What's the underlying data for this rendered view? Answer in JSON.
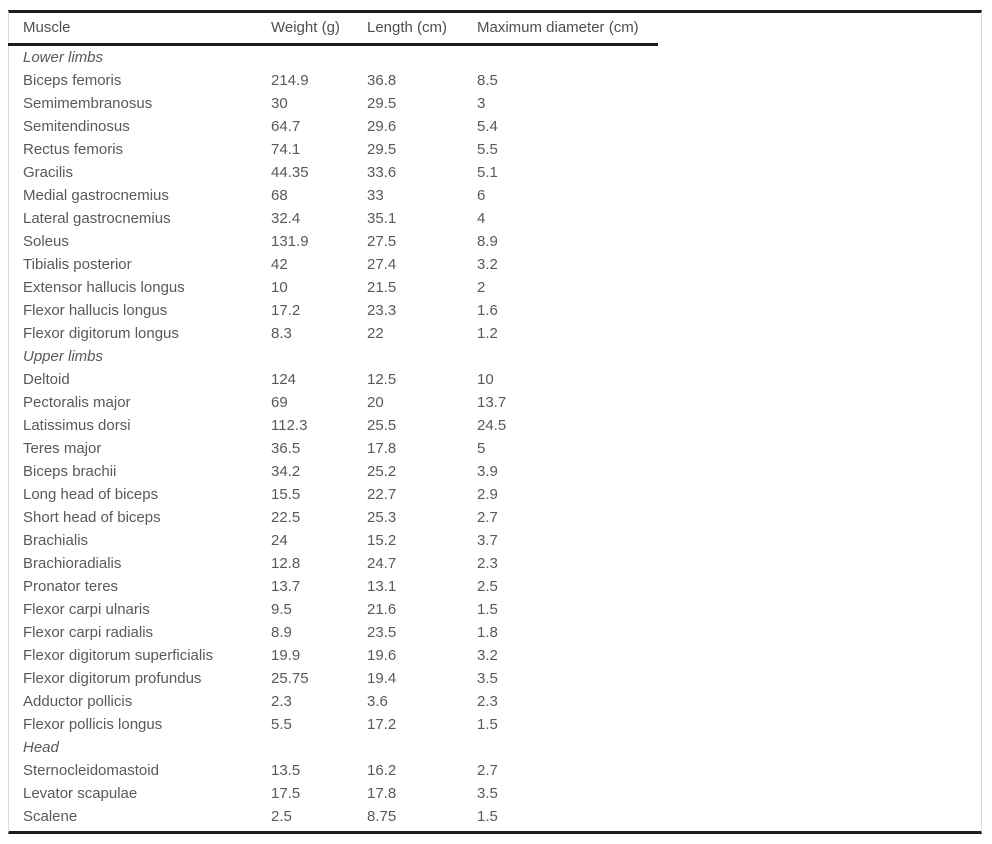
{
  "colors": {
    "background": "#ffffff",
    "text": "#595959",
    "header_text": "#4f4f4f",
    "rule": "#1d1d1d",
    "frame_border": "#d9d9d9"
  },
  "table": {
    "columns": [
      "Muscle",
      "Weight (g)",
      "Length (cm)",
      "Maximum diameter (cm)"
    ],
    "sections": [
      {
        "label": "Lower limbs",
        "rows": [
          [
            "Biceps femoris",
            "214.9",
            "36.8",
            "8.5"
          ],
          [
            "Semimembranosus",
            "30",
            "29.5",
            "3"
          ],
          [
            "Semitendinosus",
            "64.7",
            "29.6",
            "5.4"
          ],
          [
            "Rectus femoris",
            "74.1",
            "29.5",
            "5.5"
          ],
          [
            "Gracilis",
            "44.35",
            "33.6",
            "5.1"
          ],
          [
            "Medial gastrocnemius",
            "68",
            "33",
            "6"
          ],
          [
            "Lateral gastrocnemius",
            "32.4",
            "35.1",
            "4"
          ],
          [
            "Soleus",
            "131.9",
            "27.5",
            "8.9"
          ],
          [
            "Tibialis posterior",
            "42",
            "27.4",
            "3.2"
          ],
          [
            "Extensor hallucis longus",
            "10",
            "21.5",
            "2"
          ],
          [
            "Flexor hallucis longus",
            "17.2",
            "23.3",
            "1.6"
          ],
          [
            "Flexor digitorum longus",
            "8.3",
            "22",
            "1.2"
          ]
        ]
      },
      {
        "label": "Upper limbs",
        "rows": [
          [
            "Deltoid",
            "124",
            "12.5",
            "10"
          ],
          [
            "Pectoralis major",
            "69",
            "20",
            "13.7"
          ],
          [
            "Latissimus dorsi",
            "112.3",
            "25.5",
            "24.5"
          ],
          [
            "Teres major",
            "36.5",
            "17.8",
            "5"
          ],
          [
            "Biceps brachii",
            "34.2",
            "25.2",
            "3.9"
          ],
          [
            "Long head of biceps",
            "15.5",
            "22.7",
            "2.9"
          ],
          [
            "Short head of biceps",
            "22.5",
            "25.3",
            "2.7"
          ],
          [
            "Brachialis",
            "24",
            "15.2",
            "3.7"
          ],
          [
            "Brachioradialis",
            "12.8",
            "24.7",
            "2.3"
          ],
          [
            "Pronator teres",
            "13.7",
            "13.1",
            "2.5"
          ],
          [
            "Flexor carpi ulnaris",
            "9.5",
            "21.6",
            "1.5"
          ],
          [
            "Flexor carpi radialis",
            "8.9",
            "23.5",
            "1.8"
          ],
          [
            "Flexor digitorum superficialis",
            "19.9",
            "19.6",
            "3.2"
          ],
          [
            "Flexor digitorum profundus",
            "25.75",
            "19.4",
            "3.5"
          ],
          [
            "Adductor pollicis",
            "2.3",
            "3.6",
            "2.3"
          ],
          [
            "Flexor pollicis longus",
            "5.5",
            "17.2",
            "1.5"
          ]
        ]
      },
      {
        "label": "Head",
        "rows": [
          [
            "Sternocleidomastoid",
            "13.5",
            "16.2",
            "2.7"
          ],
          [
            "Levator scapulae",
            "17.5",
            "17.8",
            "3.5"
          ],
          [
            "Scalene",
            "2.5",
            "8.75",
            "1.5"
          ]
        ]
      }
    ]
  }
}
